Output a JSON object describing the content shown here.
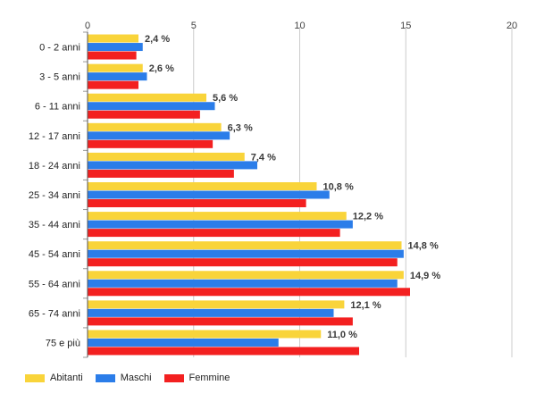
{
  "chart_data": {
    "type": "bar",
    "orientation": "horizontal",
    "categories": [
      "0 - 2 anni",
      "3 - 5 anni",
      "6 - 11 anni",
      "12 - 17 anni",
      "18 - 24 anni",
      "25 - 34 anni",
      "35 - 44 anni",
      "45 - 54 anni",
      "55 - 64 anni",
      "65 - 74 anni",
      "75 e più"
    ],
    "series": [
      {
        "name": "Abitanti",
        "color": "#f9d43a",
        "values": [
          2.4,
          2.6,
          5.6,
          6.3,
          7.4,
          10.8,
          12.2,
          14.8,
          14.9,
          12.1,
          11.0
        ]
      },
      {
        "name": "Maschi",
        "color": "#2b7de9",
        "values": [
          2.6,
          2.8,
          6.0,
          6.7,
          8.0,
          11.4,
          12.5,
          14.9,
          14.6,
          11.6,
          9.0
        ]
      },
      {
        "name": "Femmine",
        "color": "#f32020",
        "values": [
          2.3,
          2.4,
          5.3,
          5.9,
          6.9,
          10.3,
          11.9,
          14.6,
          15.2,
          12.5,
          12.8
        ]
      }
    ],
    "data_labels": [
      "2,4 %",
      "2,6 %",
      "5,6 %",
      "6,3 %",
      "7,4 %",
      "10,8 %",
      "12,2 %",
      "14,8 %",
      "14,9 %",
      "12,1 %",
      "11,0 %"
    ],
    "xlim": [
      0,
      20
    ],
    "xticks": [
      0,
      5,
      10,
      15,
      20
    ],
    "xtick_labels": [
      "0",
      "5",
      "10",
      "15",
      "20"
    ],
    "grid": true,
    "x_axis_position": "top",
    "legend_position": "bottom-left"
  }
}
